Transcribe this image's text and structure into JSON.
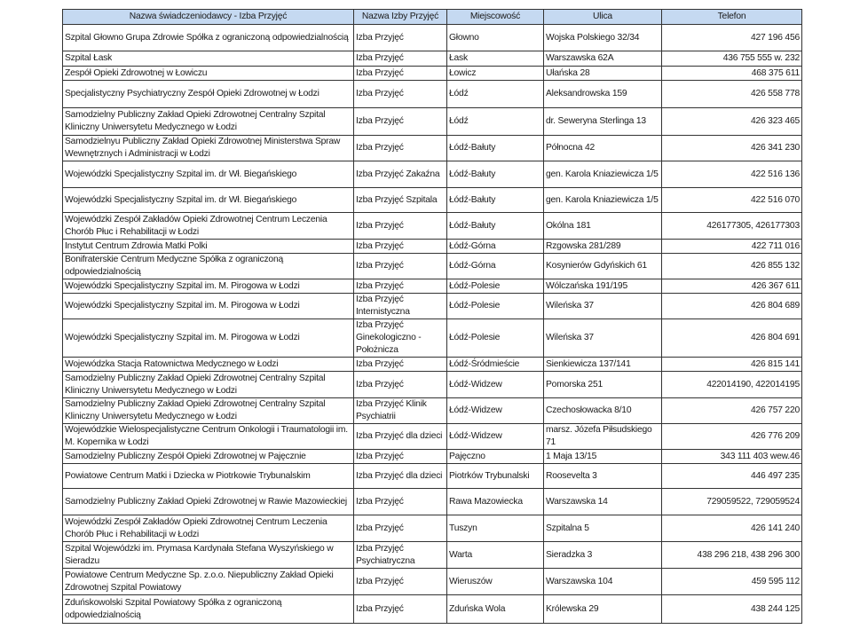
{
  "headers": [
    "Nazwa świadczeniodawcy - Izba Przyjęć",
    "Nazwa Izby Przyjęć",
    "Miejscowość",
    "Ulica",
    "Telefon"
  ],
  "header_color": "#c5d9f1",
  "rows": [
    [
      "Szpital Głowno Grupa Zdrowie Spółka z ograniczoną odpowiedzialnością",
      "Izba Przyjęć",
      "Głowno",
      "Wojska Polskiego 32/34",
      "427 196 456"
    ],
    [
      "Szpital Łask",
      "Izba Przyjęć",
      "Łask",
      "Warszawska 62A",
      "436 755 555 w. 232"
    ],
    [
      "Zespół Opieki Zdrowotnej w Łowiczu",
      "Izba Przyjęć",
      "Łowicz",
      "Ułańska 28",
      "468 375 611"
    ],
    [
      "Specjalistyczny Psychiatryczny Zespół Opieki Zdrowotnej w Łodzi",
      "Izba Przyjęć",
      "Łódź",
      "Aleksandrowska 159",
      "426 558 778"
    ],
    [
      "Samodzielny Publiczny Zakład Opieki Zdrowotnej Centralny Szpital Kliniczny Uniwersytetu Medycznego w Łodzi",
      "Izba Przyjęć",
      "Łódź",
      "dr. Seweryna Sterlinga 13",
      "426 323 465"
    ],
    [
      "Samodzielnyu Publiczny Zakład Opieki Zdrowotnej Ministerstwa Spraw Wewnętrznych i Administracji w Łodzi",
      "Izba Przyjęć",
      "Łódź-Bałuty",
      "Północna 42",
      "426 341 230"
    ],
    [
      "Wojewódzki Specjalistyczny Szpital im. dr Wł. Biegańskiego",
      "Izba Przyjęć Zakaźna",
      "Łódź-Bałuty",
      "gen. Karola Kniaziewicza 1/5",
      "422 516 136"
    ],
    [
      "Wojewódzki Specjalistyczny Szpital im. dr Wł. Biegańskiego",
      "Izba Przyjęć  Szpitala",
      "Łódź-Bałuty",
      "gen. Karola Kniaziewicza 1/5",
      "422 516 070"
    ],
    [
      "Wojewódzki Zespół Zakładów Opieki Zdrowotnej Centrum Leczenia Chorób Płuc i Rehabilitacji w Łodzi",
      "Izba Przyjęć",
      "Łódź-Bałuty",
      "Okólna 181",
      "426177305, 426177303"
    ],
    [
      "Instytut Centrum Zdrowia Matki Polki",
      "Izba Przyjęć",
      "Łódź-Górna",
      "Rzgowska 281/289",
      "422 711 016"
    ],
    [
      "Bonifraterskie Centrum Medyczne Spółka z ograniczoną odpowiedzialnością",
      "Izba Przyjęć",
      "Łódź-Górna",
      "Kosynierów Gdyńskich 61",
      "426 855 132"
    ],
    [
      "Wojewódzki Specjalistyczny Szpital im. M. Pirogowa w Łodzi",
      "Izba Przyjęć",
      "Łódź-Polesie",
      "Wólczańska 191/195",
      "426 367 611"
    ],
    [
      "Wojewódzki Specjalistyczny Szpital im. M. Pirogowa w Łodzi",
      "Izba Przyjęć Internistyczna",
      "Łódź-Polesie",
      "Wileńska 37",
      "426 804 689"
    ],
    [
      "Wojewódzki Specjalistyczny Szpital im. M. Pirogowa w Łodzi",
      "Izba Przyjęć Ginekologiczno - Położnicza",
      "Łódź-Polesie",
      "Wileńska 37",
      "426 804 691"
    ],
    [
      "Wojewódzka Stacja Ratownictwa Medycznego w Łodzi",
      "Izba Przyjęć",
      "Łódź-Śródmieście",
      "Sienkiewicza 137/141",
      "426 815 141"
    ],
    [
      "Samodzielny Publiczny Zakład Opieki Zdrowotnej Centralny Szpital Kliniczny Uniwersytetu Medycznego w Łodzi",
      "Izba Przyjęć",
      "Łódź-Widzew",
      "Pomorska 251",
      "422014190, 422014195"
    ],
    [
      "Samodzielny Publiczny Zakład Opieki Zdrowotnej Centralny Szpital Kliniczny Uniwersytetu Medycznego w Łodzi",
      "Izba Przyjęć Klinik Psychiatrii",
      "Łódź-Widzew",
      "Czechosłowacka 8/10",
      "426 757 220"
    ],
    [
      "Wojewódzkie Wielospecjalistyczne Centrum Onkologii i Traumatologii im. M. Kopernika w Łodzi",
      "Izba Przyjęć dla dzieci",
      "Łódź-Widzew",
      "marsz. Józefa Piłsudskiego 71",
      "426 776 209"
    ],
    [
      "Samodzielny Publiczny Zespół Opieki Zdrowotnej w Pajęcznie",
      "Izba Przyjęć",
      "Pajęczno",
      "1 Maja 13/15",
      "343 111 403 wew.46"
    ],
    [
      "Powiatowe Centrum Matki i Dziecka w Piotrkowie Trybunalskim",
      "Izba Przyjęć dla dzieci",
      "Piotrków Trybunalski",
      "Roosevelta 3",
      "446 497 235"
    ],
    [
      "Samodzielny Publiczny Zakład Opieki Zdrowotnej  w Rawie Mazowieckiej",
      "Izba Przyjęć",
      "Rawa Mazowiecka",
      "Warszawska  14",
      "729059522, 729059524"
    ],
    [
      "Wojewódzki Zespół Zakładów Opieki Zdrowotnej Centrum Leczenia Chorób Płuc i Rehabilitacji w Łodzi",
      "Izba Przyjęć",
      "Tuszyn",
      "Szpitalna 5",
      "426 141 240"
    ],
    [
      "Szpital Wojewódzki im. Prymasa Kardynała Stefana Wyszyńskiego w Sieradzu",
      "Izba Przyjęć Psychiatryczna",
      "Warta",
      "Sieradzka 3",
      "438 296 218, 438 296 300"
    ],
    [
      "Powiatowe Centrum Medyczne Sp. z.o.o. Niepubliczny Zakład Opieki Zdrowotnej Szpital Powiatowy",
      "Izba Przyjęć",
      "Wieruszów",
      "Warszawska 104",
      "459 595 112"
    ],
    [
      "Zduńskowolski Szpital Powiatowy Spółka z ograniczoną odpowiedzialnością",
      "Izba Przyjęć",
      "Zduńska Wola",
      "Królewska 29",
      "438 244 125"
    ]
  ]
}
